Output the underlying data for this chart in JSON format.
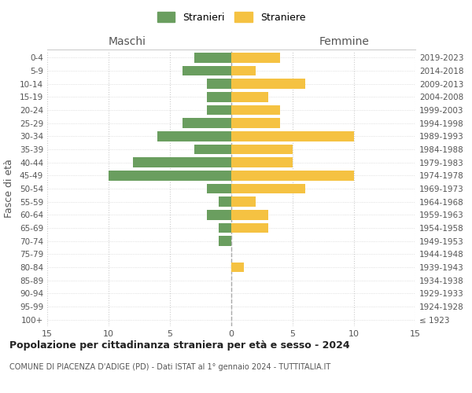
{
  "age_groups": [
    "100+",
    "95-99",
    "90-94",
    "85-89",
    "80-84",
    "75-79",
    "70-74",
    "65-69",
    "60-64",
    "55-59",
    "50-54",
    "45-49",
    "40-44",
    "35-39",
    "30-34",
    "25-29",
    "20-24",
    "15-19",
    "10-14",
    "5-9",
    "0-4"
  ],
  "birth_years": [
    "≤ 1923",
    "1924-1928",
    "1929-1933",
    "1934-1938",
    "1939-1943",
    "1944-1948",
    "1949-1953",
    "1954-1958",
    "1959-1963",
    "1964-1968",
    "1969-1973",
    "1974-1978",
    "1979-1983",
    "1984-1988",
    "1989-1993",
    "1994-1998",
    "1999-2003",
    "2004-2008",
    "2009-2013",
    "2014-2018",
    "2019-2023"
  ],
  "males": [
    0,
    0,
    0,
    0,
    0,
    0,
    1,
    1,
    2,
    1,
    2,
    10,
    8,
    3,
    6,
    4,
    2,
    2,
    2,
    4,
    3
  ],
  "females": [
    0,
    0,
    0,
    0,
    1,
    0,
    0,
    3,
    3,
    2,
    6,
    10,
    5,
    5,
    10,
    4,
    4,
    3,
    6,
    2,
    4
  ],
  "male_color": "#6a9e5f",
  "female_color": "#f5c242",
  "title": "Popolazione per cittadinanza straniera per età e sesso - 2024",
  "subtitle": "COMUNE DI PIACENZA D'ADIGE (PD) - Dati ISTAT al 1° gennaio 2024 - TUTTITALIA.IT",
  "ylabel_left": "Fasce di età",
  "xlabel_left": "Maschi",
  "xlabel_top_right": "Femmine",
  "legend_male": "Stranieri",
  "legend_female": "Straniere",
  "xlim": 15,
  "background_color": "#ffffff",
  "grid_color": "#cccccc"
}
